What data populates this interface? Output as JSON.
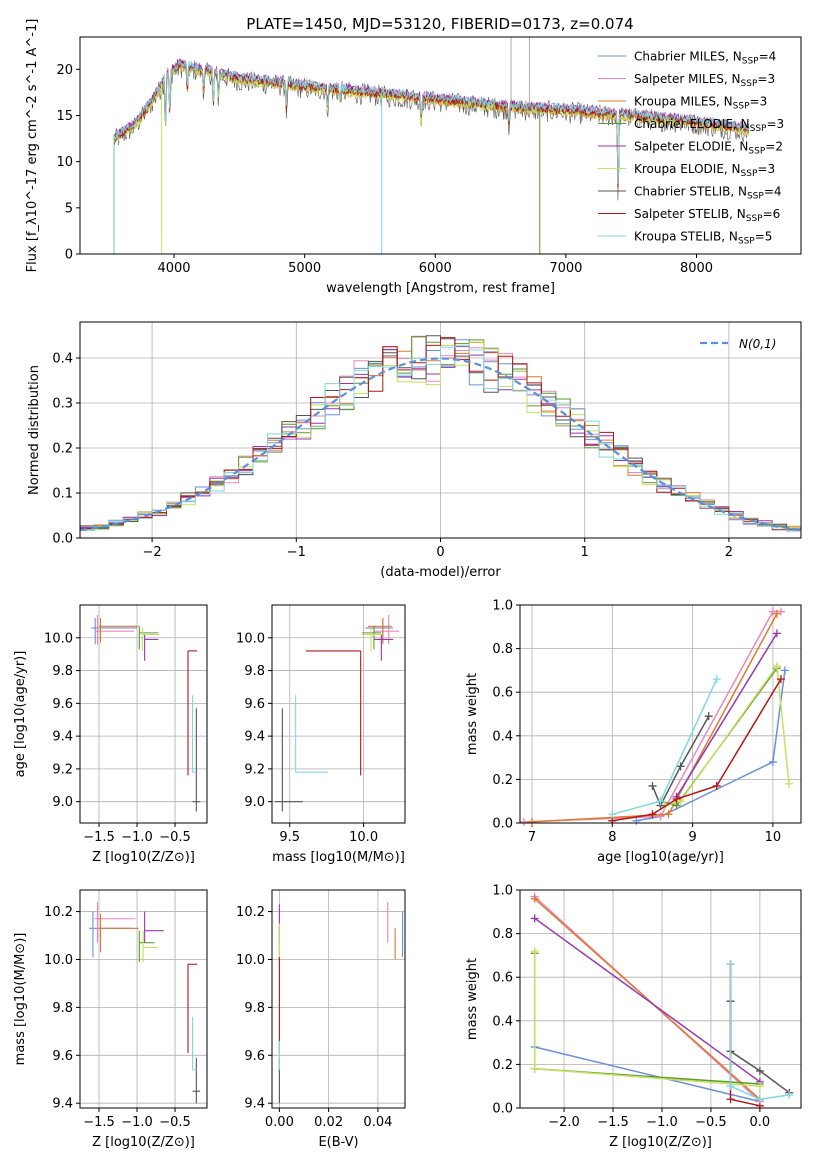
{
  "title": "PLATE=1450, MJD=53120, FIBERID=0173, z=0.074",
  "colors": {
    "chabrier_miles": "#6b8fe0",
    "salpeter_miles": "#e888b8",
    "kroupa_miles": "#e07830",
    "chabrier_elodie": "#5a9a2a",
    "salpeter_elodie": "#9a35b0",
    "kroupa_elodie": "#c8e060",
    "chabrier_stelib": "#555555",
    "salpeter_stelib": "#b01818",
    "kroupa_stelib": "#80d8e0",
    "normal_curve": "#5a8fdc"
  },
  "chart_data": [
    {
      "id": "spectrum",
      "type": "line",
      "xlabel": "wavelength [Angstrom, rest frame]",
      "ylabel": "Flux [f_λ10^-17 erg cm^-2 s^-1 A^-1]",
      "xlim": [
        3280,
        8800
      ],
      "ylim": [
        0,
        23.5
      ],
      "xticks": [
        4000,
        5000,
        6000,
        7000,
        8000
      ],
      "yticks": [
        0,
        5,
        10,
        15,
        20
      ],
      "grid": false,
      "legend_position": "top-right",
      "x_range_drawn": [
        3540,
        8400
      ],
      "continuum": [
        [
          3540,
          12.5
        ],
        [
          3700,
          14
        ],
        [
          3850,
          17
        ],
        [
          3950,
          19.5
        ],
        [
          4050,
          20.5
        ],
        [
          4200,
          20
        ],
        [
          4500,
          19
        ],
        [
          5000,
          18.2
        ],
        [
          5500,
          17.5
        ],
        [
          6000,
          16.8
        ],
        [
          6500,
          16
        ],
        [
          7000,
          15.6
        ],
        [
          7500,
          15
        ],
        [
          8000,
          14.3
        ],
        [
          8400,
          13.5
        ]
      ],
      "series": [
        {
          "name": "Chabrier MILES, N_SSP=4",
          "color_key": "chabrier_miles"
        },
        {
          "name": "Salpeter MILES, N_SSP=3",
          "color_key": "salpeter_miles"
        },
        {
          "name": "Kroupa MILES, N_SSP=3",
          "color_key": "kroupa_miles"
        },
        {
          "name": "Chabrier ELODIE, N_SSP=3",
          "color_key": "chabrier_elodie"
        },
        {
          "name": "Salpeter ELODIE, N_SSP=2",
          "color_key": "salpeter_elodie"
        },
        {
          "name": "Kroupa ELODIE, N_SSP=3",
          "color_key": "kroupa_elodie"
        },
        {
          "name": "Chabrier STELIB, N_SSP=4",
          "color_key": "chabrier_stelib"
        },
        {
          "name": "Salpeter STELIB, N_SSP=6",
          "color_key": "salpeter_stelib"
        },
        {
          "name": "Kroupa STELIB, N_SSP=5",
          "color_key": "kroupa_stelib"
        }
      ]
    },
    {
      "id": "residuals",
      "type": "line",
      "xlabel": "(data-model)/error",
      "ylabel": "Normed distribution",
      "xlim": [
        -2.5,
        2.5
      ],
      "ylim": [
        0,
        0.48
      ],
      "xticks": [
        -2,
        -1,
        0,
        1,
        2
      ],
      "yticks": [
        0.0,
        0.1,
        0.2,
        0.3,
        0.4
      ],
      "grid": true,
      "legend_position": "top-right",
      "legend_label": "N(0,1)",
      "bin_width": 0.1
    },
    {
      "id": "age_vs_Z",
      "type": "scatter",
      "xlabel": "Z [log10(Z/Z⊙)]",
      "ylabel": "age  [log10(age/yr)]",
      "xlim": [
        -1.75,
        -0.08
      ],
      "ylim": [
        8.87,
        10.2
      ],
      "xticks": [
        -1.5,
        -1.0,
        -0.5
      ],
      "yticks": [
        9.0,
        9.2,
        9.4,
        9.6,
        9.8,
        10.0
      ],
      "grid": true,
      "points": [
        {
          "k": "chabrier_miles",
          "x": -1.55,
          "y": 10.06,
          "xerr": [
            0.05,
            0.55
          ],
          "yerr": [
            0.1,
            0.06
          ]
        },
        {
          "k": "salpeter_miles",
          "x": -1.52,
          "y": 10.04,
          "xerr": [
            0.03,
            0.48
          ],
          "yerr": [
            0.08,
            0.1
          ]
        },
        {
          "k": "kroupa_miles",
          "x": -1.48,
          "y": 10.07,
          "xerr": [
            0.02,
            0.5
          ],
          "yerr": [
            0.1,
            0.05
          ]
        },
        {
          "k": "chabrier_elodie",
          "x": -0.97,
          "y": 10.03,
          "xerr": [
            0.0,
            0.25
          ],
          "yerr": [
            0.1,
            0.04
          ]
        },
        {
          "k": "salpeter_elodie",
          "x": -0.9,
          "y": 9.99,
          "xerr": [
            0.0,
            0.18
          ],
          "yerr": [
            0.13,
            0.03
          ]
        },
        {
          "k": "kroupa_elodie",
          "x": -0.93,
          "y": 10.02,
          "xerr": [
            0.0,
            0.22
          ],
          "yerr": [
            0.1,
            0.04
          ]
        },
        {
          "k": "chabrier_stelib",
          "x": -0.22,
          "y": 9.0,
          "xerr": [
            0.05,
            0.05
          ],
          "yerr": [
            0.06,
            0.57
          ]
        },
        {
          "k": "salpeter_stelib",
          "x": -0.33,
          "y": 9.92,
          "xerr": [
            0.0,
            0.12
          ],
          "yerr": [
            0.76,
            0.0
          ]
        },
        {
          "k": "kroupa_stelib",
          "x": -0.27,
          "y": 9.18,
          "xerr": [
            0.0,
            0.05
          ],
          "yerr": [
            0.0,
            0.47
          ]
        }
      ]
    },
    {
      "id": "age_vs_mass",
      "type": "scatter",
      "xlabel": "mass [log10(M/M⊙)]",
      "ylabel": "",
      "xlim": [
        9.38,
        10.28
      ],
      "ylim": [
        8.87,
        10.2
      ],
      "xticks": [
        9.5,
        10.0
      ],
      "yticks": [
        9.0,
        9.2,
        9.4,
        9.6,
        9.8,
        10.0
      ],
      "grid": true,
      "points": [
        {
          "k": "chabrier_miles",
          "x": 10.13,
          "y": 10.06,
          "xerr": [
            0.12,
            0.07
          ],
          "yerr": [
            0.1,
            0.06
          ]
        },
        {
          "k": "salpeter_miles",
          "x": 10.17,
          "y": 10.04,
          "xerr": [
            0.1,
            0.07
          ],
          "yerr": [
            0.08,
            0.1
          ]
        },
        {
          "k": "kroupa_miles",
          "x": 10.13,
          "y": 10.07,
          "xerr": [
            0.1,
            0.06
          ],
          "yerr": [
            0.1,
            0.05
          ]
        },
        {
          "k": "chabrier_elodie",
          "x": 10.07,
          "y": 10.03,
          "xerr": [
            0.08,
            0.05
          ],
          "yerr": [
            0.1,
            0.04
          ]
        },
        {
          "k": "salpeter_elodie",
          "x": 10.12,
          "y": 9.99,
          "xerr": [
            0.05,
            0.08
          ],
          "yerr": [
            0.13,
            0.03
          ]
        },
        {
          "k": "kroupa_elodie",
          "x": 10.05,
          "y": 10.02,
          "xerr": [
            0.06,
            0.07
          ],
          "yerr": [
            0.1,
            0.04
          ]
        },
        {
          "k": "chabrier_stelib",
          "x": 9.45,
          "y": 9.0,
          "xerr": [
            0.05,
            0.14
          ],
          "yerr": [
            0.06,
            0.57
          ]
        },
        {
          "k": "salpeter_stelib",
          "x": 9.98,
          "y": 9.92,
          "xerr": [
            0.37,
            0.0
          ],
          "yerr": [
            0.76,
            0.0
          ]
        },
        {
          "k": "kroupa_stelib",
          "x": 9.54,
          "y": 9.18,
          "xerr": [
            0.0,
            0.22
          ],
          "yerr": [
            0.0,
            0.47
          ]
        }
      ]
    },
    {
      "id": "massweight_vs_age",
      "type": "line",
      "xlabel": "age  [log10(age/yr)]",
      "ylabel": "mass weight",
      "xlim": [
        6.85,
        10.35
      ],
      "ylim": [
        0,
        1.0
      ],
      "xticks": [
        7,
        8,
        9,
        10
      ],
      "yticks": [
        0.0,
        0.2,
        0.4,
        0.6,
        0.8,
        1.0
      ],
      "grid": true,
      "series": [
        {
          "k": "chabrier_miles",
          "x": [
            8.3,
            8.6,
            10.0,
            10.15
          ],
          "y": [
            0.01,
            0.03,
            0.28,
            0.7
          ]
        },
        {
          "k": "salpeter_miles",
          "x": [
            6.9,
            8.6,
            10.0,
            10.1
          ],
          "y": [
            0.005,
            0.03,
            0.97,
            0.97
          ]
        },
        {
          "k": "kroupa_miles",
          "x": [
            7.0,
            8.7,
            10.05
          ],
          "y": [
            0.005,
            0.04,
            0.96
          ]
        },
        {
          "k": "chabrier_elodie",
          "x": [
            8.6,
            8.8,
            10.05
          ],
          "y": [
            0.1,
            0.08,
            0.71
          ]
        },
        {
          "k": "salpeter_elodie",
          "x": [
            8.8,
            10.05
          ],
          "y": [
            0.12,
            0.87
          ]
        },
        {
          "k": "kroupa_elodie",
          "x": [
            8.65,
            8.85,
            10.05,
            10.2
          ],
          "y": [
            0.08,
            0.1,
            0.72,
            0.18
          ]
        },
        {
          "k": "chabrier_stelib",
          "x": [
            8.5,
            8.6,
            8.85,
            9.2
          ],
          "y": [
            0.17,
            0.08,
            0.26,
            0.49
          ]
        },
        {
          "k": "salpeter_stelib",
          "x": [
            8.0,
            8.5,
            8.8,
            9.3,
            10.1
          ],
          "y": [
            0.01,
            0.04,
            0.11,
            0.17,
            0.66
          ]
        },
        {
          "k": "kroupa_stelib",
          "x": [
            8.0,
            8.6,
            9.3
          ],
          "y": [
            0.04,
            0.1,
            0.66
          ]
        }
      ]
    },
    {
      "id": "mass_vs_Z",
      "type": "scatter",
      "xlabel": "Z [log10(Z/Z⊙)]",
      "ylabel": "mass [log10(M/M⊙)]",
      "xlim": [
        -1.75,
        -0.08
      ],
      "ylim": [
        9.38,
        10.29
      ],
      "xticks": [
        -1.5,
        -1.0,
        -0.5
      ],
      "yticks": [
        9.4,
        9.6,
        9.8,
        10.0,
        10.2
      ],
      "grid": true,
      "points": [
        {
          "k": "chabrier_miles",
          "x": -1.58,
          "y": 10.13,
          "xerr": [
            0.05,
            0.5
          ],
          "yerr": [
            0.12,
            0.07
          ]
        },
        {
          "k": "salpeter_miles",
          "x": -1.52,
          "y": 10.17,
          "xerr": [
            0.04,
            0.5
          ],
          "yerr": [
            0.1,
            0.07
          ]
        },
        {
          "k": "kroupa_miles",
          "x": -1.48,
          "y": 10.13,
          "xerr": [
            0.02,
            0.5
          ],
          "yerr": [
            0.1,
            0.06
          ]
        },
        {
          "k": "chabrier_elodie",
          "x": -0.97,
          "y": 10.07,
          "xerr": [
            0.0,
            0.2
          ],
          "yerr": [
            0.08,
            0.05
          ]
        },
        {
          "k": "salpeter_elodie",
          "x": -0.9,
          "y": 10.12,
          "xerr": [
            0.0,
            0.25
          ],
          "yerr": [
            0.05,
            0.08
          ]
        },
        {
          "k": "kroupa_elodie",
          "x": -0.92,
          "y": 10.05,
          "xerr": [
            0.0,
            0.2
          ],
          "yerr": [
            0.06,
            0.07
          ]
        },
        {
          "k": "chabrier_stelib",
          "x": -0.22,
          "y": 9.45,
          "xerr": [
            0.05,
            0.05
          ],
          "yerr": [
            0.05,
            0.14
          ]
        },
        {
          "k": "salpeter_stelib",
          "x": -0.33,
          "y": 9.98,
          "xerr": [
            0.0,
            0.12
          ],
          "yerr": [
            0.37,
            0.0
          ]
        },
        {
          "k": "kroupa_stelib",
          "x": -0.27,
          "y": 9.54,
          "xerr": [
            0.0,
            0.05
          ],
          "yerr": [
            0.0,
            0.22
          ]
        }
      ]
    },
    {
      "id": "mass_vs_ebv",
      "type": "scatter",
      "xlabel": "E(B-V)",
      "ylabel": "",
      "xlim": [
        -0.003,
        0.051
      ],
      "ylim": [
        9.38,
        10.29
      ],
      "xticks": [
        0.0,
        0.02,
        0.04
      ],
      "yticks": [
        9.4,
        9.6,
        9.8,
        10.0,
        10.2
      ],
      "grid": true,
      "points": [
        {
          "k": "chabrier_miles",
          "x": 0.05,
          "y": 10.13,
          "xerr": [
            0,
            0
          ],
          "yerr": [
            0.12,
            0.07
          ]
        },
        {
          "k": "salpeter_miles",
          "x": 0.044,
          "y": 10.17,
          "xerr": [
            0,
            0
          ],
          "yerr": [
            0.1,
            0.07
          ]
        },
        {
          "k": "kroupa_miles",
          "x": 0.047,
          "y": 10.13,
          "xerr": [
            0,
            0
          ],
          "yerr": [
            0.13,
            0.0
          ]
        },
        {
          "k": "chabrier_elodie",
          "x": 0.0,
          "y": 10.07,
          "xerr": [
            0,
            0
          ],
          "yerr": [
            0.08,
            0.05
          ]
        },
        {
          "k": "salpeter_elodie",
          "x": 0.0,
          "y": 10.12,
          "xerr": [
            0,
            0
          ],
          "yerr": [
            0.05,
            0.11
          ]
        },
        {
          "k": "kroupa_elodie",
          "x": 0.0,
          "y": 10.05,
          "xerr": [
            0,
            0
          ],
          "yerr": [
            0.06,
            0.1
          ]
        },
        {
          "k": "chabrier_stelib",
          "x": 0.0,
          "y": 9.45,
          "xerr": [
            0,
            0
          ],
          "yerr": [
            0.05,
            0.14
          ]
        },
        {
          "k": "salpeter_stelib",
          "x": 0.0,
          "y": 9.98,
          "xerr": [
            0,
            0
          ],
          "yerr": [
            0.37,
            0.03
          ]
        },
        {
          "k": "kroupa_stelib",
          "x": 0.0,
          "y": 9.54,
          "xerr": [
            0,
            0
          ],
          "yerr": [
            0.0,
            0.12
          ]
        }
      ]
    },
    {
      "id": "massweight_vs_Z",
      "type": "line",
      "xlabel": "Z [log10(Z/Z⊙)]",
      "ylabel": "mass weight",
      "xlim": [
        -2.45,
        0.42
      ],
      "ylim": [
        0,
        1.0
      ],
      "xticks": [
        -2.0,
        -1.5,
        -1.0,
        -0.5,
        0.0
      ],
      "yticks": [
        0.0,
        0.2,
        0.4,
        0.6,
        0.8,
        1.0
      ],
      "grid": true,
      "series": [
        {
          "k": "chabrier_miles",
          "x": [
            -2.3,
            0.0
          ],
          "y": [
            0.28,
            0.03
          ]
        },
        {
          "k": "salpeter_miles",
          "x": [
            -2.3,
            0.0
          ],
          "y": [
            0.97,
            0.03
          ]
        },
        {
          "k": "kroupa_miles",
          "x": [
            -2.3,
            0.0
          ],
          "y": [
            0.96,
            0.04
          ]
        },
        {
          "k": "chabrier_elodie",
          "x": [
            -2.3,
            -2.3,
            0.0
          ],
          "y": [
            0.71,
            0.18,
            0.11
          ]
        },
        {
          "k": "salpeter_elodie",
          "x": [
            -2.3,
            0.0
          ],
          "y": [
            0.87,
            0.12
          ]
        },
        {
          "k": "kroupa_elodie",
          "x": [
            -2.3,
            -2.3,
            0.0
          ],
          "y": [
            0.72,
            0.18,
            0.1
          ]
        },
        {
          "k": "chabrier_stelib",
          "x": [
            -0.3,
            -0.3,
            0.0,
            0.3
          ],
          "y": [
            0.49,
            0.26,
            0.17,
            0.07
          ]
        },
        {
          "k": "salpeter_stelib",
          "x": [
            -0.3,
            -0.3,
            0.0
          ],
          "y": [
            0.66,
            0.04,
            0.01
          ]
        },
        {
          "k": "kroupa_stelib",
          "x": [
            -0.3,
            -0.3,
            0.0,
            0.3
          ],
          "y": [
            0.66,
            0.1,
            0.04,
            0.06
          ]
        }
      ]
    }
  ]
}
